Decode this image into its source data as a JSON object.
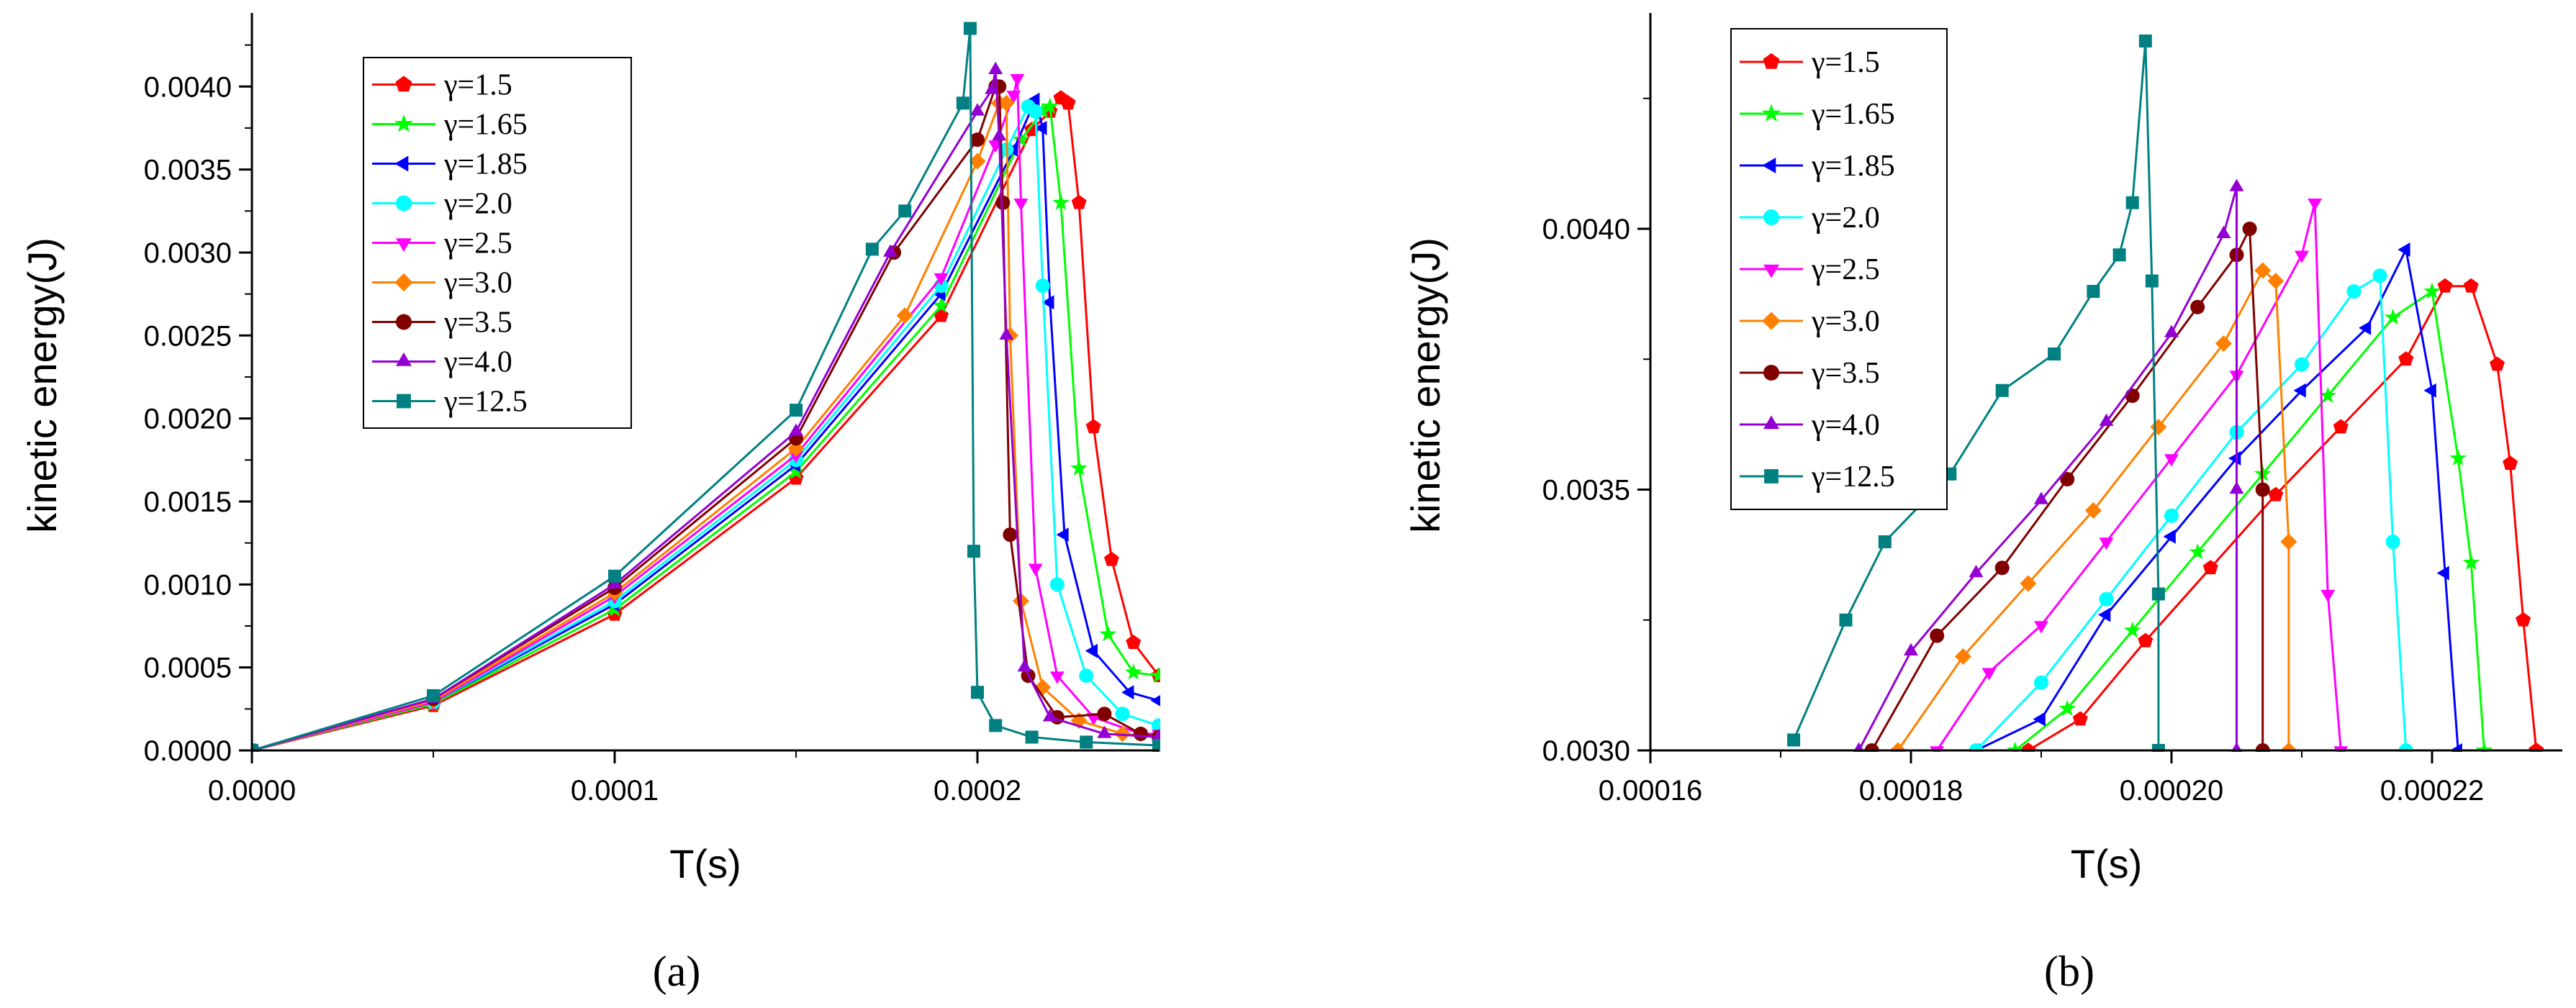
{
  "figure": {
    "caption_a": "(a)",
    "caption_b": "(b)"
  },
  "chart_data": [
    {
      "type": "line",
      "panel": "a",
      "title": "",
      "xlabel": "T(s)",
      "ylabel": "kinetic energy(J)",
      "xlim": [
        0,
        0.00025
      ],
      "ylim": [
        0,
        0.0044
      ],
      "xticks": [
        "0.0000",
        "0.0001",
        "0.0002"
      ],
      "xtick_values": [
        0,
        0.0001,
        0.0002
      ],
      "yticks": [
        "0.0000",
        "0.0005",
        "0.0010",
        "0.0015",
        "0.0020",
        "0.0025",
        "0.0030",
        "0.0035",
        "0.0040"
      ],
      "ytick_values": [
        0,
        0.0005,
        0.001,
        0.0015,
        0.002,
        0.0025,
        0.003,
        0.0035,
        0.004
      ],
      "legend_position": "top-left",
      "series": [
        {
          "name": "γ=1.5",
          "color": "#ff0000",
          "marker": "pentagon",
          "x": [
            0,
            5e-05,
            0.0001,
            0.00015,
            0.00019,
            0.000215,
            0.00022,
            0.000223,
            0.000225,
            0.000228,
            0.000232,
            0.000237,
            0.000243,
            0.00025
          ],
          "y": [
            0,
            0.00027,
            0.00082,
            0.00164,
            0.00262,
            0.00374,
            0.00385,
            0.00393,
            0.0039,
            0.0033,
            0.00195,
            0.00115,
            0.00065,
            0.00045
          ]
        },
        {
          "name": "γ=1.65",
          "color": "#00ff00",
          "marker": "star",
          "x": [
            0,
            5e-05,
            0.0001,
            0.00015,
            0.00019,
            0.000212,
            0.000218,
            0.00022,
            0.000223,
            0.000228,
            0.000236,
            0.000243,
            0.00025
          ],
          "y": [
            0,
            0.00028,
            0.00085,
            0.00168,
            0.00268,
            0.00368,
            0.00385,
            0.00388,
            0.0033,
            0.0017,
            0.0007,
            0.00047,
            0.00045
          ]
        },
        {
          "name": "γ=1.85",
          "color": "#0000ff",
          "marker": "triangle-left",
          "x": [
            0,
            5e-05,
            0.0001,
            0.00015,
            0.00019,
            0.00021,
            0.000216,
            0.000218,
            0.00022,
            0.000224,
            0.000232,
            0.000242,
            0.00025
          ],
          "y": [
            0,
            0.00029,
            0.00088,
            0.00172,
            0.00275,
            0.00362,
            0.00392,
            0.00375,
            0.0027,
            0.0013,
            0.0006,
            0.00035,
            0.0003
          ]
        },
        {
          "name": "γ=2.0",
          "color": "#00ffff",
          "marker": "circle",
          "x": [
            0,
            5e-05,
            0.0001,
            0.00015,
            0.00019,
            0.000208,
            0.000214,
            0.000216,
            0.000218,
            0.000222,
            0.00023,
            0.00024,
            0.00025
          ],
          "y": [
            0,
            0.00029,
            0.0009,
            0.00175,
            0.0028,
            0.00362,
            0.00388,
            0.00385,
            0.0028,
            0.001,
            0.00045,
            0.00022,
            0.00015
          ]
        },
        {
          "name": "γ=2.5",
          "color": "#ff00ff",
          "marker": "triangle-down",
          "x": [
            0,
            5e-05,
            0.0001,
            0.00015,
            0.00019,
            0.000205,
            0.00021,
            0.000211,
            0.000212,
            0.000216,
            0.000222,
            0.000232,
            0.000245,
            0.00025
          ],
          "y": [
            0,
            0.00029,
            0.00093,
            0.00178,
            0.00285,
            0.00365,
            0.00395,
            0.00405,
            0.0033,
            0.0011,
            0.00045,
            0.0002,
            0.0001,
            0.0001
          ]
        },
        {
          "name": "γ=3.0",
          "color": "#ff8000",
          "marker": "diamond",
          "x": [
            0,
            5e-05,
            0.0001,
            0.00015,
            0.00018,
            0.0002,
            0.000206,
            0.000208,
            0.000209,
            0.000212,
            0.000218,
            0.000228,
            0.00024,
            0.00025
          ],
          "y": [
            0,
            0.0003,
            0.00095,
            0.00182,
            0.00262,
            0.00355,
            0.0039,
            0.0039,
            0.0025,
            0.0009,
            0.00038,
            0.00018,
            0.0001,
            8e-05
          ]
        },
        {
          "name": "γ=3.5",
          "color": "#800000",
          "marker": "circle",
          "x": [
            0,
            5e-05,
            0.0001,
            0.00015,
            0.000177,
            0.0002,
            0.000205,
            0.000206,
            0.000207,
            0.000209,
            0.000214,
            0.000222,
            0.000235,
            0.000245,
            0.00025
          ],
          "y": [
            0,
            0.00031,
            0.00098,
            0.00188,
            0.003,
            0.00368,
            0.004,
            0.004,
            0.0033,
            0.0013,
            0.00045,
            0.0002,
            0.00022,
            0.0001,
            8e-05
          ]
        },
        {
          "name": "γ=4.0",
          "color": "#9400d3",
          "marker": "triangle-up",
          "x": [
            0,
            5e-05,
            0.0001,
            0.00015,
            0.000176,
            0.0002,
            0.000204,
            0.000205,
            0.000206,
            0.000208,
            0.000213,
            0.00022,
            0.000235,
            0.00025
          ],
          "y": [
            0,
            0.00031,
            0.001,
            0.00192,
            0.003,
            0.00385,
            0.00398,
            0.0041,
            0.0037,
            0.0025,
            0.0005,
            0.0002,
            0.0001,
            8e-05
          ]
        },
        {
          "name": "γ=12.5",
          "color": "#008080",
          "marker": "square",
          "x": [
            0,
            5e-05,
            0.0001,
            0.00015,
            0.000171,
            0.00018,
            0.000196,
            0.000198,
            0.000199,
            0.0002,
            0.000205,
            0.000215,
            0.00023,
            0.00025
          ],
          "y": [
            0,
            0.00033,
            0.00105,
            0.00205,
            0.00302,
            0.00325,
            0.0039,
            0.00435,
            0.0012,
            0.00035,
            0.00015,
            8e-05,
            5e-05,
            3e-05
          ]
        }
      ]
    },
    {
      "type": "line",
      "panel": "b",
      "title": "",
      "xlabel": "T(s)",
      "ylabel": "kinetic energy(J)",
      "xlim": [
        0.00016,
        0.00023
      ],
      "ylim": [
        0.003,
        0.0044
      ],
      "xticks": [
        "0.00016",
        "0.00018",
        "0.00020",
        "0.00022"
      ],
      "xtick_values": [
        0.00016,
        0.00018,
        0.0002,
        0.00022
      ],
      "yticks": [
        "0.0030",
        "0.0035",
        "0.0040"
      ],
      "ytick_values": [
        0.003,
        0.0035,
        0.004
      ],
      "legend_position": "top-left",
      "series": [
        {
          "name": "γ=1.5",
          "color": "#ff0000",
          "marker": "pentagon",
          "x": [
            0.000189,
            0.000193,
            0.000198,
            0.000203,
            0.000208,
            0.000213,
            0.000218,
            0.000221,
            0.000223,
            0.000225,
            0.000226,
            0.000227,
            0.000228
          ],
          "y": [
            0.003,
            0.00306,
            0.00321,
            0.00335,
            0.00349,
            0.00362,
            0.00375,
            0.00389,
            0.00389,
            0.00374,
            0.00355,
            0.00325,
            0.003
          ]
        },
        {
          "name": "γ=1.65",
          "color": "#00ff00",
          "marker": "star",
          "x": [
            0.000188,
            0.000192,
            0.000197,
            0.000202,
            0.000207,
            0.000212,
            0.000217,
            0.00022,
            0.000222,
            0.000223,
            0.000224
          ],
          "y": [
            0.003,
            0.00308,
            0.00323,
            0.00338,
            0.00353,
            0.00368,
            0.00383,
            0.00388,
            0.00356,
            0.00336,
            0.003
          ]
        },
        {
          "name": "γ=1.85",
          "color": "#0000ff",
          "marker": "triangle-left",
          "x": [
            0.000185,
            0.00019,
            0.000195,
            0.0002,
            0.000205,
            0.00021,
            0.000215,
            0.000218,
            0.00022,
            0.000221,
            0.000222
          ],
          "y": [
            0.003,
            0.00306,
            0.00326,
            0.00341,
            0.00356,
            0.00369,
            0.00381,
            0.00396,
            0.00369,
            0.00334,
            0.003
          ]
        },
        {
          "name": "γ=2.0",
          "color": "#00ffff",
          "marker": "circle",
          "x": [
            0.000185,
            0.00019,
            0.000195,
            0.0002,
            0.000205,
            0.00021,
            0.000214,
            0.000216,
            0.000217,
            0.000218
          ],
          "y": [
            0.003,
            0.00313,
            0.00329,
            0.00345,
            0.00361,
            0.00374,
            0.00388,
            0.00391,
            0.0034,
            0.003
          ]
        },
        {
          "name": "γ=2.5",
          "color": "#ff00ff",
          "marker": "triangle-down",
          "x": [
            0.000182,
            0.000186,
            0.00019,
            0.000195,
            0.0002,
            0.000205,
            0.00021,
            0.000211,
            0.000212,
            0.000213
          ],
          "y": [
            0.003,
            0.00315,
            0.00324,
            0.0034,
            0.00356,
            0.00372,
            0.00395,
            0.00405,
            0.0033,
            0.003
          ]
        },
        {
          "name": "γ=3.0",
          "color": "#ff8000",
          "marker": "diamond",
          "x": [
            0.000179,
            0.000184,
            0.000189,
            0.000194,
            0.000199,
            0.000204,
            0.000207,
            0.000208,
            0.000209,
            0.000209
          ],
          "y": [
            0.003,
            0.00318,
            0.00332,
            0.00346,
            0.00362,
            0.00378,
            0.00392,
            0.0039,
            0.0034,
            0.003
          ]
        },
        {
          "name": "γ=3.5",
          "color": "#800000",
          "marker": "circle",
          "x": [
            0.000177,
            0.000182,
            0.000187,
            0.000192,
            0.000197,
            0.000202,
            0.000205,
            0.000206,
            0.000207,
            0.000207
          ],
          "y": [
            0.003,
            0.00322,
            0.00335,
            0.00352,
            0.00368,
            0.00385,
            0.00395,
            0.004,
            0.0035,
            0.003
          ]
        },
        {
          "name": "γ=4.0",
          "color": "#9400d3",
          "marker": "triangle-up",
          "x": [
            0.000176,
            0.00018,
            0.000185,
            0.00019,
            0.000195,
            0.0002,
            0.000204,
            0.000205,
            0.000205,
            0.000205
          ],
          "y": [
            0.003,
            0.00319,
            0.00334,
            0.00348,
            0.00363,
            0.0038,
            0.00399,
            0.00408,
            0.0035,
            0.003
          ]
        },
        {
          "name": "γ=12.5",
          "color": "#008080",
          "marker": "square",
          "x": [
            0.000171,
            0.000175,
            0.000178,
            0.000183,
            0.000187,
            0.000191,
            0.000194,
            0.000196,
            0.000197,
            0.000198,
            0.0001985,
            0.000199,
            0.000199
          ],
          "y": [
            0.00302,
            0.00325,
            0.0034,
            0.00353,
            0.00369,
            0.00376,
            0.00388,
            0.00395,
            0.00405,
            0.00436,
            0.0039,
            0.0033,
            0.003
          ]
        }
      ]
    }
  ]
}
